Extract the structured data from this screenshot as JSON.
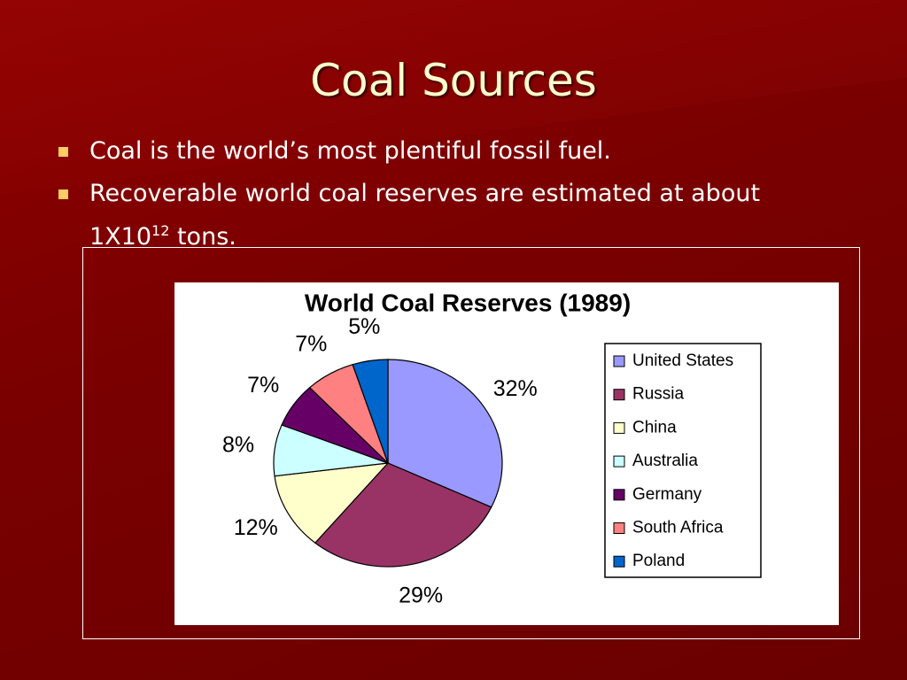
{
  "title": "Coal Sources",
  "bullets": [
    {
      "text": "Coal is the world’s most plentiful fossil fuel."
    },
    {
      "text": "Recoverable world coal reserves are estimated at about 1X10",
      "sup": "12",
      "tail": " tons."
    }
  ],
  "chart_data": {
    "type": "pie",
    "title": "World Coal Reserves (1989)",
    "categories": [
      "United States",
      "Russia",
      "China",
      "Australia",
      "Germany",
      "South Africa",
      "Poland"
    ],
    "values": [
      32,
      29,
      12,
      8,
      7,
      7,
      5
    ],
    "value_labels": [
      "32%",
      "29%",
      "12%",
      "8%",
      "7%",
      "7%",
      "5%"
    ],
    "colors": [
      "#9999ff",
      "#993366",
      "#ffffcc",
      "#ccffff",
      "#660066",
      "#ff8080",
      "#0066cc"
    ],
    "legend": "right"
  }
}
